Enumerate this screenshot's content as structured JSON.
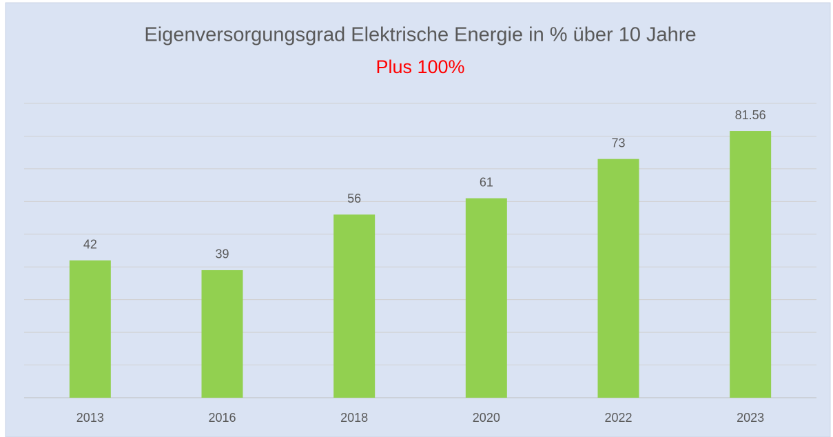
{
  "chart_data": {
    "type": "bar",
    "title": "Eigenversorgungsgrad Elektrische Energie in % über 10 Jahre",
    "subtitle": "Plus 100%",
    "categories": [
      "2013",
      "2016",
      "2018",
      "2020",
      "2022",
      "2023"
    ],
    "values": [
      42,
      39,
      56,
      61,
      73,
      81.56
    ],
    "color": "#92d050",
    "ylim": [
      0,
      90
    ],
    "yticks": [
      0,
      10,
      20,
      30,
      40,
      50,
      60,
      70,
      80,
      90
    ],
    "grid": true
  }
}
